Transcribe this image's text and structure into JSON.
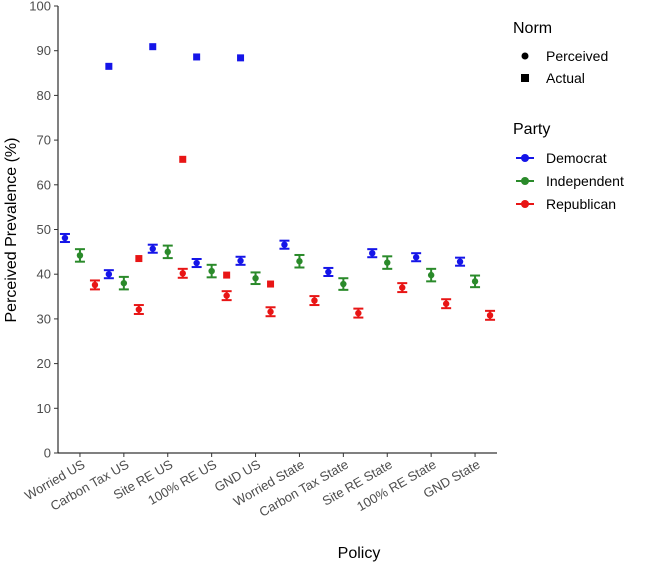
{
  "chart_data": {
    "type": "scatter",
    "xlabel": "Policy",
    "ylabel": "Perceived Prevalence (%)",
    "ylim": [
      0,
      100
    ],
    "yticks": [
      0,
      10,
      20,
      30,
      40,
      50,
      60,
      70,
      80,
      90,
      100
    ],
    "grid": false,
    "categories": [
      "Worried US",
      "Carbon Tax US",
      "Site RE US",
      "100% RE US",
      "GND US",
      "Worried State",
      "Carbon Tax State",
      "Site RE State",
      "100% RE State",
      "GND State"
    ],
    "series": [
      {
        "name": "Democrat",
        "color": "#1515e8",
        "perceived": [
          48.1,
          40.0,
          45.7,
          42.5,
          43.0,
          46.6,
          40.5,
          44.7,
          43.8,
          42.8
        ],
        "error": [
          0.9,
          0.9,
          0.9,
          0.9,
          0.9,
          0.9,
          0.9,
          0.9,
          0.9,
          0.9
        ],
        "actual": [
          null,
          86.5,
          90.9,
          88.6,
          88.4,
          null,
          null,
          null,
          null,
          null
        ]
      },
      {
        "name": "Independent",
        "color": "#2a8a2a",
        "perceived": [
          44.2,
          38.0,
          45.0,
          40.7,
          39.1,
          42.9,
          37.8,
          42.6,
          39.8,
          38.4
        ],
        "error": [
          1.4,
          1.4,
          1.4,
          1.4,
          1.3,
          1.4,
          1.3,
          1.4,
          1.4,
          1.3
        ],
        "actual": [
          null,
          null,
          null,
          null,
          null,
          null,
          null,
          null,
          null,
          null
        ]
      },
      {
        "name": "Republican",
        "color": "#e81515",
        "perceived": [
          37.6,
          32.1,
          40.2,
          35.2,
          31.6,
          34.1,
          31.3,
          37.0,
          33.4,
          30.8
        ],
        "error": [
          1.0,
          1.0,
          1.0,
          1.0,
          1.0,
          1.0,
          1.0,
          1.0,
          1.0,
          1.0
        ],
        "actual": [
          null,
          43.5,
          65.7,
          39.8,
          37.8,
          null,
          null,
          null,
          null,
          null
        ]
      }
    ],
    "legend": {
      "placement": "right",
      "norm_title": "Norm",
      "norm_items": [
        "Perceived",
        "Actual"
      ],
      "party_title": "Party",
      "party_items": [
        "Democrat",
        "Independent",
        "Republican"
      ]
    }
  }
}
